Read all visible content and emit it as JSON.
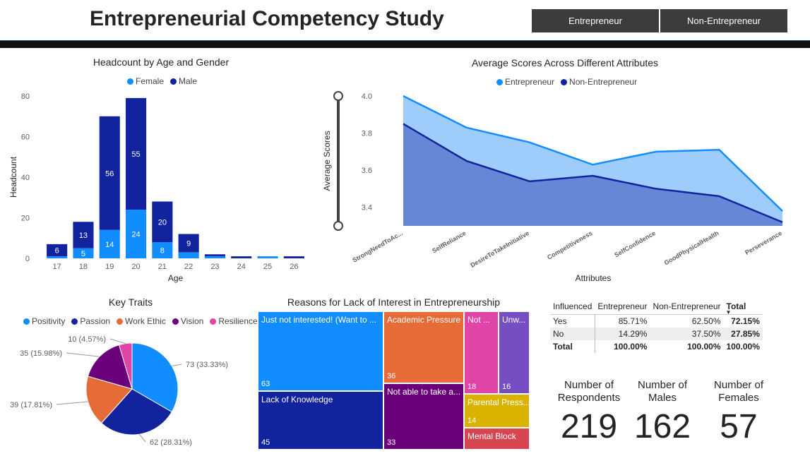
{
  "header": {
    "title": "Entrepreneurial Competency Study",
    "slicer_options": [
      "Entrepreneur",
      "Non-Entrepreneur"
    ]
  },
  "colors": {
    "female": "#118dff",
    "male": "#12239e",
    "entrepreneur": "#118dff",
    "non_entrepreneur": "#12239e",
    "positivity": "#118dff",
    "passion": "#12239e",
    "work_ethic": "#e66c37",
    "vision": "#6b007b",
    "resilience": "#e044a7"
  },
  "chart_data": [
    {
      "type": "bar",
      "stacked": true,
      "title": "Headcount by Age and Gender",
      "xlabel": "Age",
      "ylabel": "Headcount",
      "ylim": [
        0,
        80
      ],
      "yticks": [
        0,
        20,
        40,
        60,
        80
      ],
      "categories": [
        "17",
        "18",
        "19",
        "20",
        "21",
        "22",
        "23",
        "24",
        "25",
        "26"
      ],
      "series": [
        {
          "name": "Female",
          "values": [
            1,
            5,
            14,
            24,
            8,
            3,
            1,
            0,
            1,
            0
          ]
        },
        {
          "name": "Male",
          "values": [
            6,
            13,
            56,
            55,
            20,
            9,
            1,
            1,
            0,
            1
          ]
        }
      ],
      "data_labels": {
        "Female": [
          "",
          "5",
          "14",
          "24",
          "8",
          "",
          "",
          "",
          "",
          ""
        ],
        "Male": [
          "6",
          "13",
          "56",
          "55",
          "20",
          "9",
          "",
          "",
          "",
          ""
        ]
      },
      "legend": "top-center"
    },
    {
      "type": "area",
      "title": "Average Scores Across Different Attributes",
      "xlabel": "Attributes",
      "ylabel": "Average Scores",
      "ylim": [
        3.3,
        4.0
      ],
      "yticks": [
        "3.4",
        "3.6",
        "3.8",
        "4.0"
      ],
      "categories": [
        "StrongNeedToAc...",
        "SelfReliance",
        "DesireToTakeInitiative",
        "Competitiveness",
        "SelfConfidence",
        "GoodPhysicalHealth",
        "Perseverance"
      ],
      "series": [
        {
          "name": "Entrepreneur",
          "values": [
            4.0,
            3.83,
            3.75,
            3.63,
            3.7,
            3.71,
            3.38
          ]
        },
        {
          "name": "Non-Entrepreneur",
          "values": [
            3.85,
            3.65,
            3.54,
            3.57,
            3.5,
            3.46,
            3.32
          ]
        }
      ],
      "legend": "top-center"
    },
    {
      "type": "pie",
      "title": "Key Traits",
      "legend": "top",
      "slices": [
        {
          "name": "Positivity",
          "value": 73,
          "label": "73 (33.33%)"
        },
        {
          "name": "Passion",
          "value": 62,
          "label": "62 (28.31%)"
        },
        {
          "name": "Work Ethic",
          "value": 39,
          "label": "39 (17.81%)"
        },
        {
          "name": "Vision",
          "value": 35,
          "label": "35 (15.98%)"
        },
        {
          "name": "Resilience",
          "value": 10,
          "label": "10 (4.57%)"
        }
      ]
    },
    {
      "type": "treemap",
      "title": "Reasons for Lack of Interest in Entrepreneurship",
      "items": [
        {
          "label": "Just not interested! (Want to ...",
          "value": 63,
          "color": "#118dff"
        },
        {
          "label": "Lack of Knowledge",
          "value": 45,
          "color": "#12239e"
        },
        {
          "label": "Academic Pressure",
          "value": 36,
          "color": "#e66c37"
        },
        {
          "label": "Not able to take a...",
          "value": 33,
          "color": "#6b007b"
        },
        {
          "label": "Not ...",
          "value": 18,
          "color": "#e044a7"
        },
        {
          "label": "Unw...",
          "value": 16,
          "color": "#744ec2"
        },
        {
          "label": "Parental Press...",
          "value": 14,
          "color": "#d9b300"
        },
        {
          "label": "Mental Block",
          "value": "",
          "color": "#d64550"
        }
      ]
    },
    {
      "type": "table",
      "columns": [
        "Influenced",
        "Entrepreneur",
        "Non-Entrepreneur",
        "Total"
      ],
      "rows": [
        [
          "Yes",
          "85.71%",
          "62.50%",
          "72.15%"
        ],
        [
          "No",
          "14.29%",
          "37.50%",
          "27.85%"
        ],
        [
          "Total",
          "100.00%",
          "100.00%",
          "100.00%"
        ]
      ]
    }
  ],
  "cards": [
    {
      "label": "Number of Respondents",
      "value": "219"
    },
    {
      "label": "Number of Males",
      "value": "162"
    },
    {
      "label": "Number of Females",
      "value": "57"
    }
  ]
}
